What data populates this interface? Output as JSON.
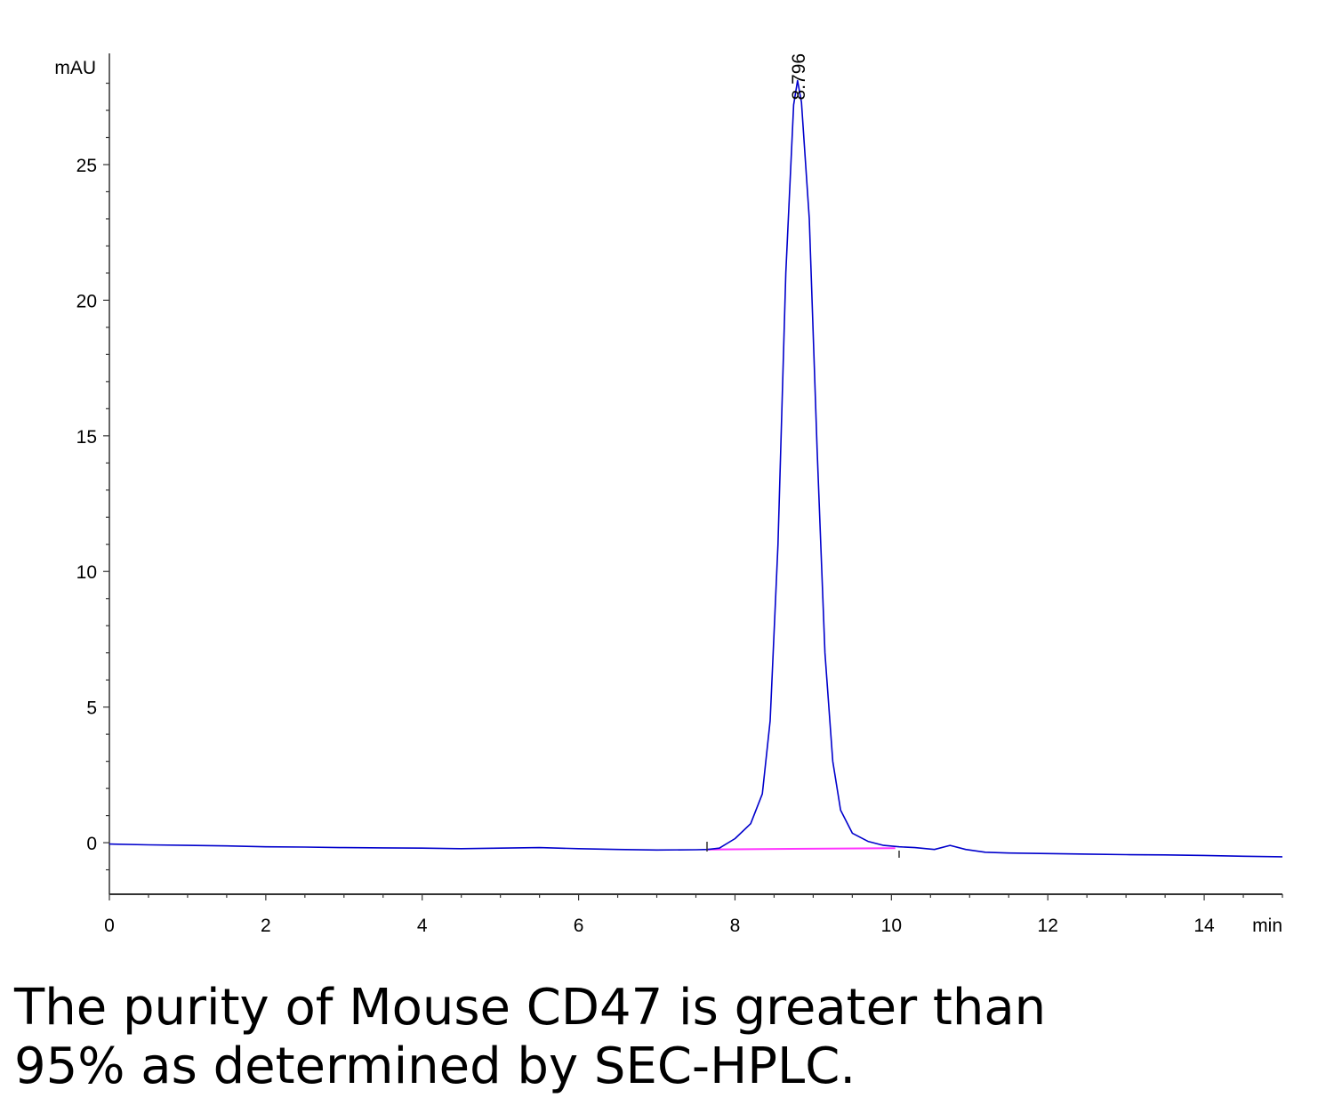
{
  "chart_data": {
    "type": "line",
    "ylabel": "mAU",
    "xlabel": "min",
    "xlim": [
      0,
      15
    ],
    "ylim": [
      -1.9,
      29.1
    ],
    "x_ticks": [
      0,
      2,
      4,
      6,
      8,
      10,
      12,
      14
    ],
    "y_ticks": [
      0,
      5,
      10,
      15,
      20,
      25
    ],
    "grid": false,
    "peak_label": "8.796",
    "series": [
      {
        "color": "#0000cc",
        "x": [
          0,
          0.5,
          1,
          1.5,
          2,
          2.5,
          3,
          3.5,
          4,
          4.5,
          5,
          5.5,
          6,
          6.5,
          7,
          7.5,
          7.65,
          7.8,
          8.0,
          8.2,
          8.35,
          8.45,
          8.55,
          8.65,
          8.75,
          8.8,
          8.85,
          8.95,
          9.05,
          9.15,
          9.25,
          9.35,
          9.5,
          9.7,
          9.9,
          10.1,
          10.3,
          10.55,
          10.75,
          10.95,
          11.2,
          11.5,
          12,
          12.5,
          13,
          13.5,
          14,
          14.5,
          15
        ],
        "y": [
          -0.05,
          -0.08,
          -0.1,
          -0.12,
          -0.15,
          -0.16,
          -0.18,
          -0.19,
          -0.2,
          -0.22,
          -0.2,
          -0.18,
          -0.22,
          -0.25,
          -0.27,
          -0.26,
          -0.25,
          -0.2,
          0.15,
          0.7,
          1.8,
          4.5,
          11.0,
          21.0,
          27.2,
          28.1,
          27.3,
          23.0,
          14.5,
          7.0,
          3.0,
          1.2,
          0.35,
          0.05,
          -0.1,
          -0.15,
          -0.18,
          -0.25,
          -0.1,
          -0.25,
          -0.35,
          -0.38,
          -0.4,
          -0.42,
          -0.44,
          -0.45,
          -0.47,
          -0.5,
          -0.52
        ]
      },
      {
        "color": "#ff33ff",
        "x": [
          7.65,
          10.05
        ],
        "y": [
          -0.25,
          -0.2
        ]
      }
    ]
  },
  "caption": {
    "line1": "The purity of Mouse CD47 is greater than",
    "line2": "95% as determined by SEC-HPLC."
  }
}
